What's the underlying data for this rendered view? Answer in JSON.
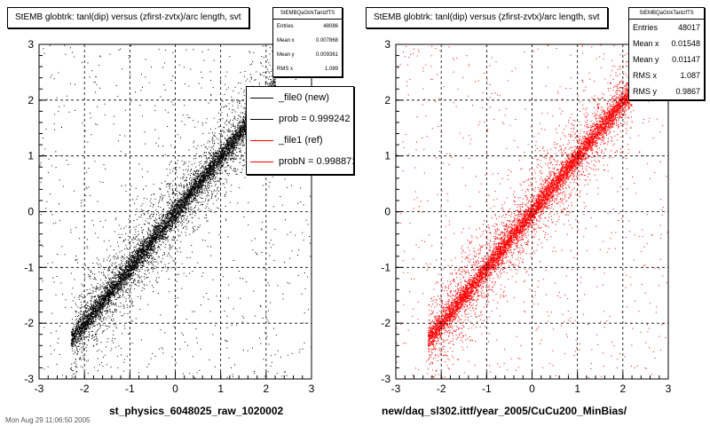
{
  "panels": [
    {
      "title": "StEMB globtrk: tanl(dip) versus (zfirst-zvtx)/arc length, svt",
      "xlabel": "st_physics_6048025_raw_1020002",
      "stats": {
        "name": "StEMBQaGtrkTanlzfTS",
        "rows": [
          {
            "label": "Entries",
            "value": "48086"
          },
          {
            "label": "Mean x",
            "value": "0.007868"
          },
          {
            "label": "Mean y",
            "value": "0.009361"
          },
          {
            "label": "RMS x",
            "value": "1.089"
          }
        ]
      },
      "legend": [
        {
          "label": "_file0 (new)",
          "color": "#000000"
        },
        {
          "label": "prob = 0.999242",
          "color": "#000000"
        },
        {
          "label": "_file1 (ref)",
          "color": "#ff0000"
        },
        {
          "label": "probN = 0.998871",
          "color": "#ff0000"
        }
      ]
    },
    {
      "title": "StEMB globtrk: tanl(dip) versus (zfirst-zvtx)/arc length, svt",
      "xlabel": "new/daq_sl302.ittf/year_2005/CuCu200_MinBias/",
      "stats": {
        "name": "StEMBQaGtrkTanlzfTS",
        "rows": [
          {
            "label": "Entries",
            "value": "48017"
          },
          {
            "label": "Mean x",
            "value": "0.01548"
          },
          {
            "label": "Mean y",
            "value": "0.01147"
          },
          {
            "label": "RMS x",
            "value": "1.087"
          },
          {
            "label": "RMS y",
            "value": "0.9867"
          }
        ]
      }
    }
  ],
  "footer_text": "Mon Aug 29 11:06:50 2005",
  "chart_data": [
    {
      "type": "scatter",
      "title": "StEMB globtrk: tanl(dip) versus (zfirst-zvtx)/arc length, svt",
      "xlabel": "st_physics_6048025_raw_1020002",
      "ylabel": "",
      "xlim": [
        -3,
        3
      ],
      "ylim": [
        -3,
        3
      ],
      "x_ticks": [
        "-3",
        "-2",
        "-1",
        "0",
        "1",
        "2",
        "3"
      ],
      "y_ticks": [
        "-3",
        "-2",
        "-1",
        "0",
        "1",
        "2",
        "3"
      ],
      "grid": true,
      "color": "#000000",
      "band": {
        "x_min": -2.3,
        "x_max": 2.2,
        "slope": 1.0,
        "core_width": 0.1
      },
      "entries": 48086,
      "mean_x": 0.007868,
      "mean_y": 0.009361,
      "rms_x": 1.089
    },
    {
      "type": "scatter",
      "title": "StEMB globtrk: tanl(dip) versus (zfirst-zvtx)/arc length, svt",
      "xlabel": "new/daq_sl302.ittf/year_2005/CuCu200_MinBias/",
      "ylabel": "",
      "xlim": [
        -3,
        3
      ],
      "ylim": [
        -3,
        3
      ],
      "x_ticks": [
        "-3",
        "-2",
        "-1",
        "0",
        "1",
        "2",
        "3"
      ],
      "y_ticks": [
        "-3",
        "-2",
        "-1",
        "0",
        "1",
        "2",
        "3"
      ],
      "grid": true,
      "color": "#ff0000",
      "band": {
        "x_min": -2.3,
        "x_max": 2.2,
        "slope": 1.0,
        "core_width": 0.1
      },
      "entries": 48017,
      "mean_x": 0.01548,
      "mean_y": 0.01147,
      "rms_x": 1.087,
      "rms_y": 0.9867
    }
  ]
}
